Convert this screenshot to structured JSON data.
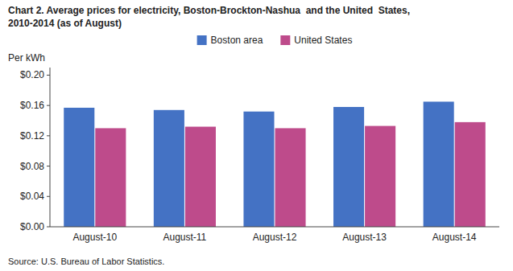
{
  "chart_data": {
    "type": "bar",
    "title": "Chart 2. Average prices for electricity, Boston-Brockton-Nashua  and the United  States,",
    "subtitle": "2010-2014 (as of August)",
    "y_label": "Per kWh",
    "source": "Source: U.S. Bureau of Labor Statistics.",
    "categories": [
      "August-10",
      "August-11",
      "August-12",
      "August-13",
      "August-14"
    ],
    "series": [
      {
        "name": "Boston area",
        "color": "#4472C4",
        "values": [
          0.157,
          0.154,
          0.152,
          0.158,
          0.165
        ]
      },
      {
        "name": "United States",
        "color": "#BE4B8B",
        "values": [
          0.13,
          0.132,
          0.13,
          0.133,
          0.138
        ]
      }
    ],
    "ylim": [
      0.0,
      0.21
    ],
    "yticks": [
      {
        "value": 0.0,
        "label": "$0.00"
      },
      {
        "value": 0.04,
        "label": "$0.04"
      },
      {
        "value": 0.08,
        "label": "$0.08"
      },
      {
        "value": 0.12,
        "label": "$0.12"
      },
      {
        "value": 0.16,
        "label": "$0.16"
      },
      {
        "value": 0.2,
        "label": "$0.20"
      }
    ],
    "grid": false,
    "legend": "top"
  }
}
